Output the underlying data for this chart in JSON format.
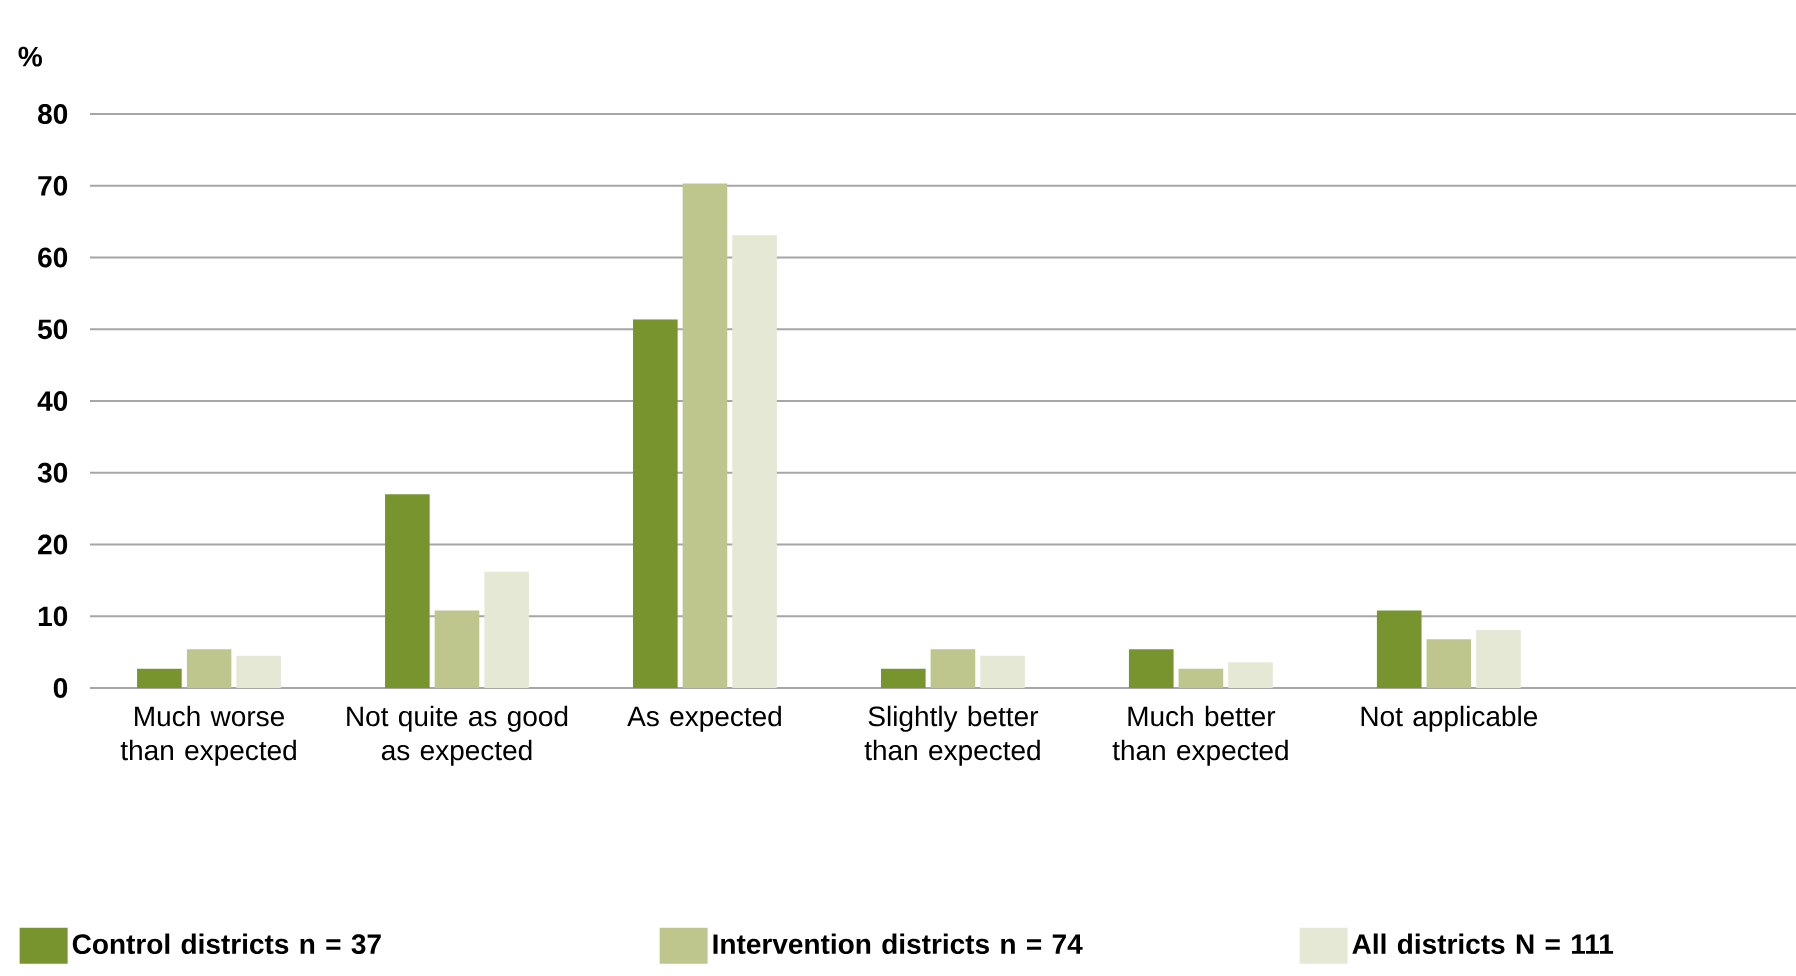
{
  "chart_data": {
    "type": "bar",
    "ylabel": "%",
    "categories": [
      "Much worse than expected",
      "Not quite as good as expected",
      "As expected",
      "Slightly better than expected",
      "Much better than expected",
      "Not applicable"
    ],
    "series": [
      {
        "name": "Control districts n = 37",
        "color": "#78942e",
        "values": [
          2.7,
          27.0,
          51.4,
          2.7,
          5.4,
          10.8
        ]
      },
      {
        "name": "Intervention districts n = 74",
        "color": "#bec68e",
        "values": [
          5.4,
          10.8,
          70.3,
          5.4,
          2.7,
          6.8
        ]
      },
      {
        "name": "All districts N = 111",
        "color": "#e5e8d4",
        "values": [
          4.5,
          16.2,
          63.1,
          4.5,
          3.6,
          8.1
        ]
      }
    ],
    "ylim": [
      0,
      80
    ],
    "yticks": [
      0,
      10,
      20,
      30,
      40,
      50,
      60,
      70,
      80
    ],
    "grid": "y",
    "legend": "bottom"
  }
}
